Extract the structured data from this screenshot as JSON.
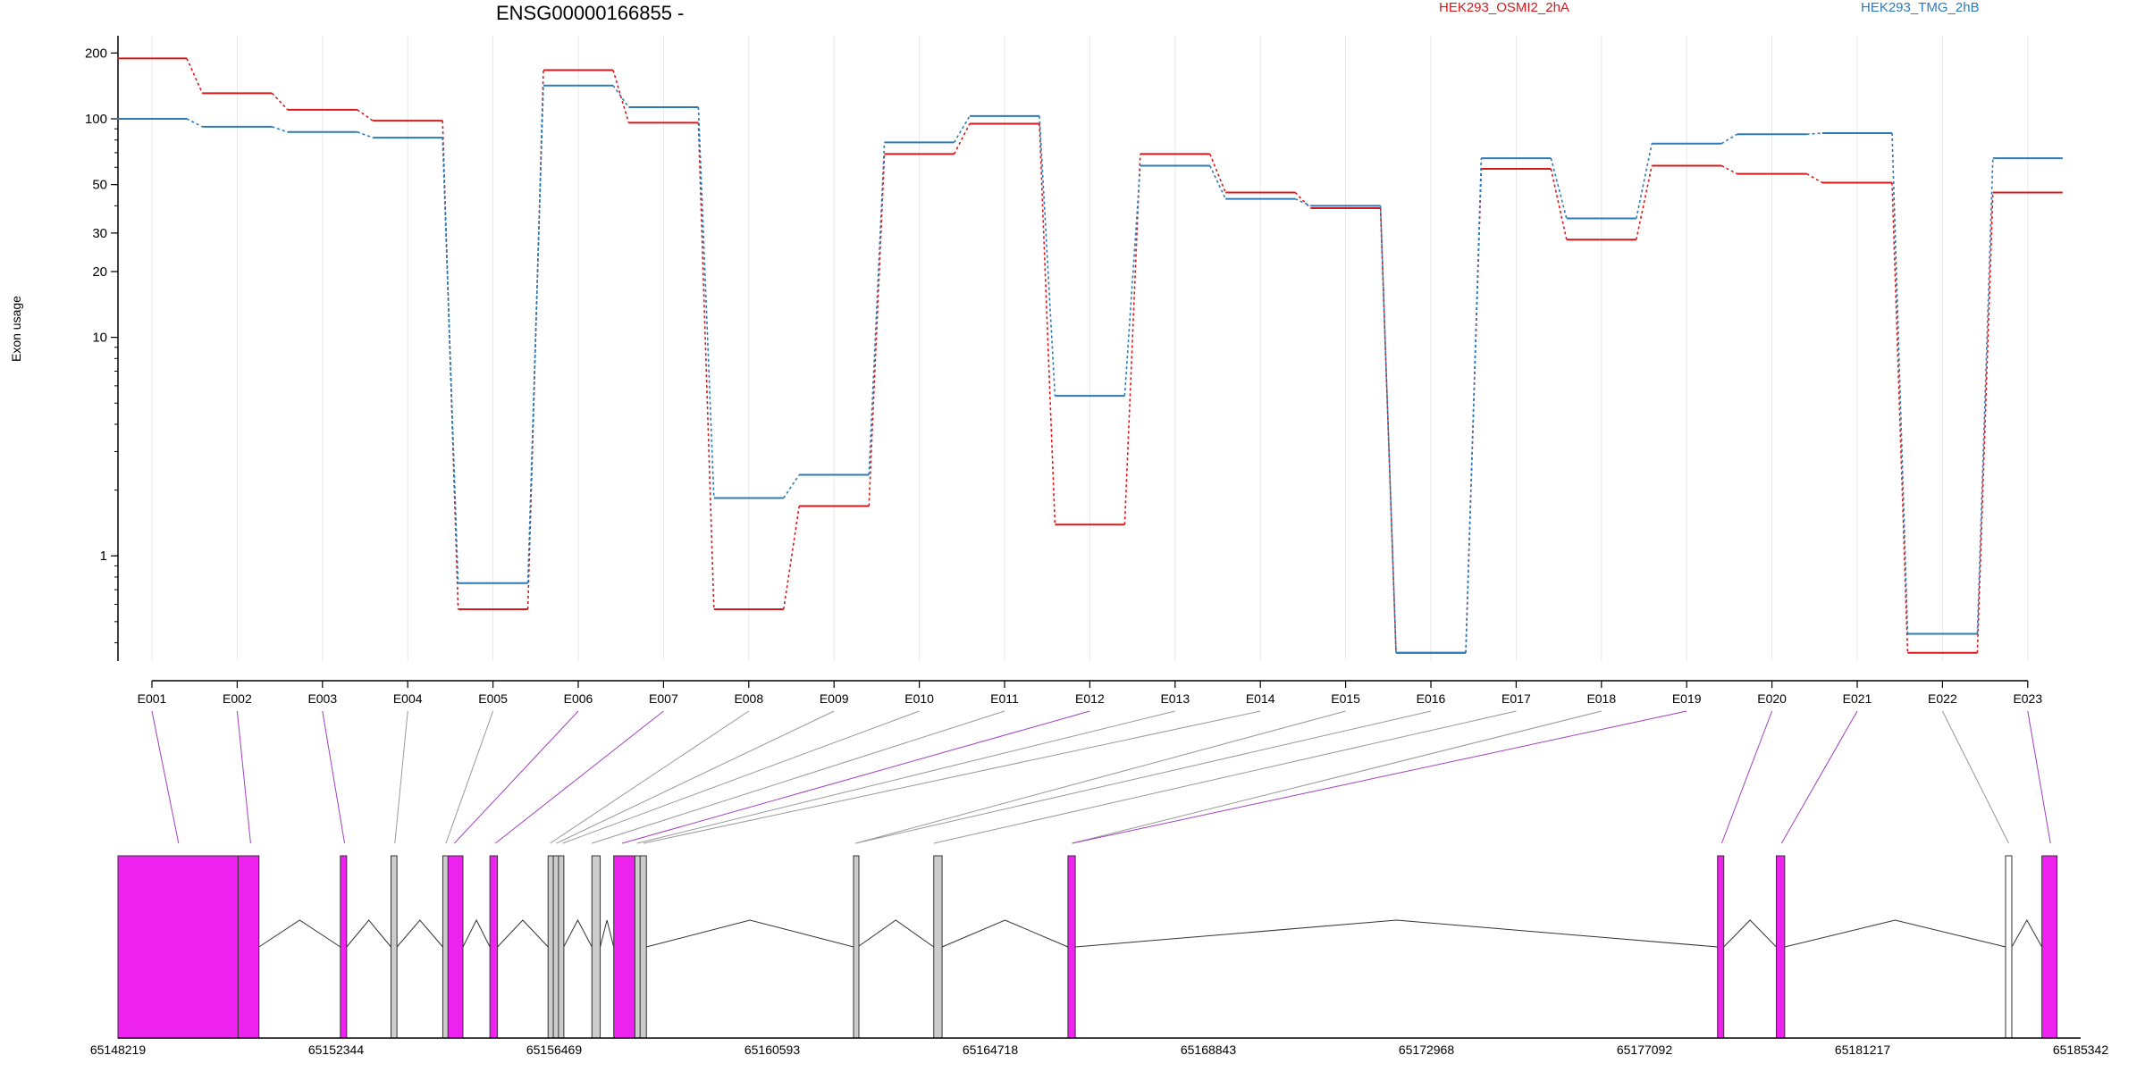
{
  "colors": {
    "series_a": "#d7191c",
    "series_b": "#2c7bb6",
    "exon_tested": "#ee22ee",
    "exon_untested": "#cccccc",
    "exon_blank": "#ffffff",
    "tested_connector": "#a040c0",
    "untested_connector": "#999999",
    "grid": "#e8e8e8"
  },
  "chart_data": {
    "type": "line",
    "title": "ENSG00000166855 -",
    "ylabel": "Exon usage",
    "y_scale": "log",
    "ylim": [
      0.33,
      240
    ],
    "yticks": [
      1,
      10,
      20,
      30,
      50,
      100,
      200
    ],
    "categories": [
      "E001",
      "E002",
      "E003",
      "E004",
      "E005",
      "E006",
      "E007",
      "E008",
      "E009",
      "E010",
      "E011",
      "E012",
      "E013",
      "E014",
      "E015",
      "E016",
      "E017",
      "E018",
      "E019",
      "E020",
      "E021",
      "E022",
      "E023"
    ],
    "series": [
      {
        "name": "HEK293_OSMI2_2hA",
        "values": [
          189,
          131,
          110,
          98,
          0.57,
          167,
          96,
          0.57,
          1.69,
          69,
          95,
          1.39,
          69,
          46,
          39,
          0.36,
          59,
          28,
          61,
          56,
          51,
          0.36,
          46
        ]
      },
      {
        "name": "HEK293_TMG_2hB",
        "values": [
          100,
          92,
          87,
          82,
          0.75,
          142,
          113,
          1.84,
          2.35,
          78,
          103,
          5.4,
          61,
          43,
          40,
          0.36,
          66,
          35,
          77,
          85,
          86,
          0.44,
          66
        ]
      }
    ],
    "genome_axis": {
      "labels": [
        "65148219",
        "65152344",
        "65156469",
        "65160593",
        "65164718",
        "65168843",
        "65172968",
        "65177092",
        "65181217",
        "65185342"
      ],
      "range": [
        65148219,
        65185342
      ]
    },
    "exon_model": [
      {
        "start": 65148219,
        "end": 65150491,
        "type": "tested"
      },
      {
        "start": 65150491,
        "end": 65150886,
        "type": "tested"
      },
      {
        "start": 65152425,
        "end": 65152544,
        "type": "tested"
      },
      {
        "start": 65153383,
        "end": 65153496,
        "type": "untested"
      },
      {
        "start": 65154363,
        "end": 65154461,
        "type": "untested"
      },
      {
        "start": 65154461,
        "end": 65154744,
        "type": "tested"
      },
      {
        "start": 65155254,
        "end": 65155397,
        "type": "tested"
      },
      {
        "start": 65156354,
        "end": 65156453,
        "type": "untested"
      },
      {
        "start": 65156453,
        "end": 65156551,
        "type": "untested"
      },
      {
        "start": 65156551,
        "end": 65156649,
        "type": "untested"
      },
      {
        "start": 65157183,
        "end": 65157340,
        "type": "untested"
      },
      {
        "start": 65157596,
        "end": 65157997,
        "type": "tested"
      },
      {
        "start": 65157997,
        "end": 65158095,
        "type": "untested"
      },
      {
        "start": 65158095,
        "end": 65158214,
        "type": "untested"
      },
      {
        "start": 65162132,
        "end": 65162211,
        "type": "untested"
      },
      {
        "start": 65163649,
        "end": 65163807,
        "type": "untested"
      },
      {
        "start": 65166187,
        "end": 65166326,
        "type": "tested"
      },
      {
        "start": 65178474,
        "end": 65178592,
        "type": "tested"
      },
      {
        "start": 65179586,
        "end": 65179744,
        "type": "tested"
      },
      {
        "start": 65183922,
        "end": 65184040,
        "type": "blank"
      },
      {
        "start": 65184609,
        "end": 65184895,
        "type": "tested"
      }
    ],
    "exon_links": [
      {
        "exon": "E001",
        "pos": 65149365,
        "tested": true
      },
      {
        "exon": "E002",
        "pos": 65150728,
        "tested": true
      },
      {
        "exon": "E003",
        "pos": 65152505,
        "tested": true
      },
      {
        "exon": "E004",
        "pos": 65153456,
        "tested": false
      },
      {
        "exon": "E005",
        "pos": 65154422,
        "tested": false
      },
      {
        "exon": "E006",
        "pos": 65154580,
        "tested": true
      },
      {
        "exon": "E007",
        "pos": 65155357,
        "tested": true
      },
      {
        "exon": "E008",
        "pos": 65156393,
        "tested": false
      },
      {
        "exon": "E009",
        "pos": 65156512,
        "tested": false
      },
      {
        "exon": "E010",
        "pos": 65156630,
        "tested": false
      },
      {
        "exon": "E011",
        "pos": 65157183,
        "tested": false
      },
      {
        "exon": "E012",
        "pos": 65157754,
        "tested": true
      },
      {
        "exon": "E013",
        "pos": 65158036,
        "tested": false
      },
      {
        "exon": "E014",
        "pos": 65158155,
        "tested": false
      },
      {
        "exon": "E015",
        "pos": 65162171,
        "tested": false
      },
      {
        "exon": "E016",
        "pos": 65162171,
        "tested": false
      },
      {
        "exon": "E017",
        "pos": 65163649,
        "tested": false
      },
      {
        "exon": "E018",
        "pos": 65166266,
        "tested": false
      },
      {
        "exon": "E019",
        "pos": 65166266,
        "tested": true
      },
      {
        "exon": "E020",
        "pos": 65178553,
        "tested": true
      },
      {
        "exon": "E021",
        "pos": 65179685,
        "tested": true
      },
      {
        "exon": "E022",
        "pos": 65183981,
        "tested": false
      },
      {
        "exon": "E023",
        "pos": 65184771,
        "tested": true
      }
    ]
  }
}
